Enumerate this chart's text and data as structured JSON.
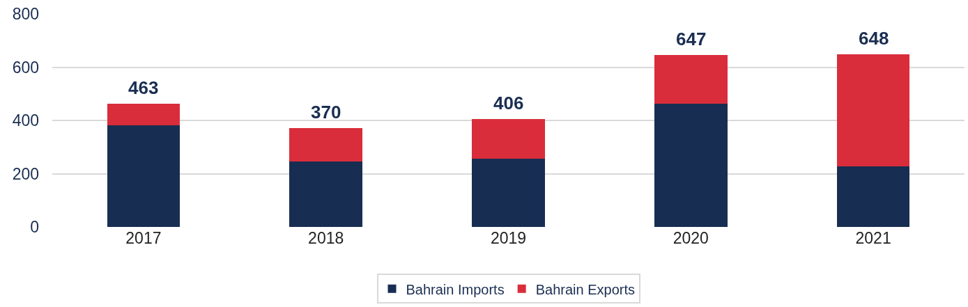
{
  "chart_data": {
    "type": "bar",
    "stacked": true,
    "categories": [
      "2017",
      "2018",
      "2019",
      "2020",
      "2021"
    ],
    "series": [
      {
        "name": "Bahrain Imports",
        "color": "#182d52",
        "values": [
          381,
          247,
          256,
          464,
          228
        ]
      },
      {
        "name": "Bahrain Exports",
        "color": "#d92d3b",
        "values": [
          82,
          123,
          150,
          183,
          420
        ]
      }
    ],
    "totals": [
      "463",
      "370",
      "406",
      "647",
      "648"
    ],
    "ylim": [
      0,
      800
    ],
    "yticks": [
      0,
      200,
      400,
      600,
      800
    ],
    "grid": "y",
    "legend": "bottom"
  }
}
